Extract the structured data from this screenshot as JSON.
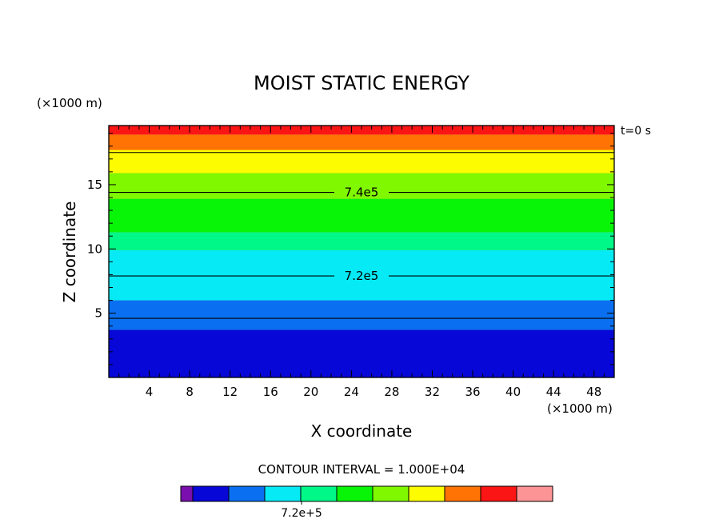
{
  "chart_data": {
    "type": "contour",
    "title": "MOIST STATIC ENERGY",
    "xlabel": "X coordinate",
    "ylabel": "Z coordinate",
    "x_unit_label": "(×1000 m)",
    "y_unit_label": "(×1000 m)",
    "time_label": "t=0 s",
    "contour_interval_label": "CONTOUR INTERVAL = 1.000E+04",
    "xlim": [
      0,
      50
    ],
    "ylim": [
      0,
      19.6
    ],
    "x_ticks": [
      4,
      8,
      12,
      16,
      20,
      24,
      28,
      32,
      36,
      40,
      44,
      48
    ],
    "y_ticks": [
      5,
      10,
      15
    ],
    "color_scale": [
      "#7a0fae",
      "#0707d8",
      "#0a6ff0",
      "#05eaf5",
      "#00f888",
      "#08f508",
      "#80f800",
      "#fdfc00",
      "#ff7305",
      "#fc1515",
      "#fc9495"
    ],
    "bands": [
      {
        "z_bottom": 0,
        "z_top": 3.7,
        "color": "#0707d8"
      },
      {
        "z_bottom": 3.7,
        "z_top": 6.0,
        "color": "#0a6ff0"
      },
      {
        "z_bottom": 6.0,
        "z_top": 9.9,
        "color": "#05eaf5"
      },
      {
        "z_bottom": 9.9,
        "z_top": 11.3,
        "color": "#00f888"
      },
      {
        "z_bottom": 11.3,
        "z_top": 13.9,
        "color": "#08f508"
      },
      {
        "z_bottom": 13.9,
        "z_top": 15.9,
        "color": "#80f800"
      },
      {
        "z_bottom": 15.9,
        "z_top": 17.7,
        "color": "#fdfc00"
      },
      {
        "z_bottom": 17.7,
        "z_top": 18.9,
        "color": "#ff7305"
      },
      {
        "z_bottom": 18.9,
        "z_top": 19.6,
        "color": "#fc1515"
      }
    ],
    "contour_lines": [
      {
        "z": 4.6,
        "label": ""
      },
      {
        "z": 7.9,
        "label": "7.2e5"
      },
      {
        "z": 14.4,
        "label": "7.4e5"
      },
      {
        "z": 17.5,
        "label": ""
      }
    ],
    "colorbar_label": "7.2e+5"
  }
}
